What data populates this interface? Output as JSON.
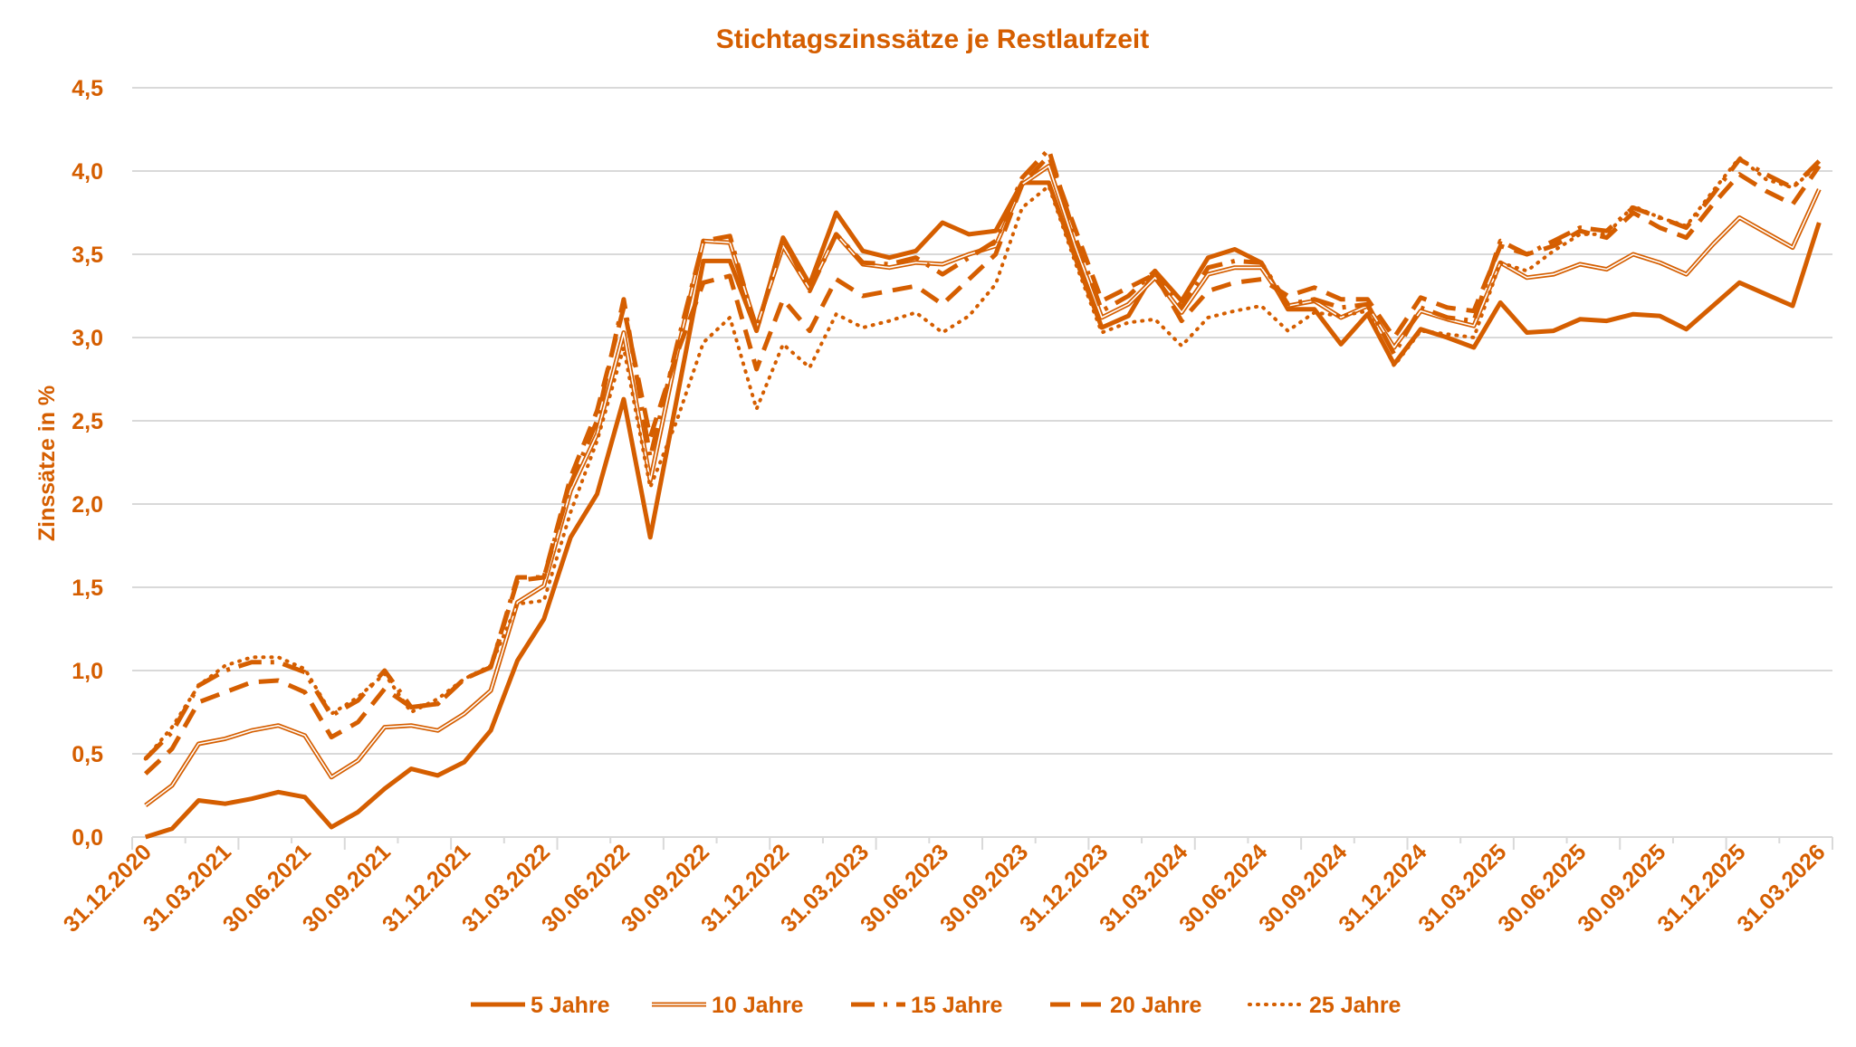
{
  "colors": {
    "series": "#D55E00",
    "grid": "#D9D9D9",
    "background": "#FFFFFF"
  },
  "chart_data": {
    "type": "line",
    "title": "Stichtagszinssätze je Restlaufzeit",
    "xlabel": "",
    "ylabel": "Zinssätze in %",
    "ylim": [
      0,
      4.5
    ],
    "yticks": [
      "0,0",
      "0,5",
      "1,0",
      "1,5",
      "2,0",
      "2,5",
      "3,0",
      "3,5",
      "4,0",
      "4,5"
    ],
    "grid": "horizontal",
    "legend_position": "bottom",
    "x_tick_labels": [
      "31.12.2020",
      "31.03.2021",
      "30.06.2021",
      "30.09.2021",
      "31.12.2021",
      "31.03.2022",
      "30.06.2022",
      "30.09.2022",
      "31.12.2022",
      "31.03.2023",
      "30.06.2023",
      "30.09.2023",
      "31.12.2023",
      "31.03.2024",
      "30.06.2024",
      "30.09.2024",
      "31.12.2024",
      "31.03.2025",
      "30.06.2025",
      "30.09.2025",
      "31.12.2025",
      "31.03.2026"
    ],
    "x_points": "monthly, 31.12.2020 to 31.03.2026",
    "series": [
      {
        "name": "5 Jahre",
        "style": "solid",
        "values": [
          0.0,
          0.05,
          0.22,
          0.2,
          0.23,
          0.27,
          0.24,
          0.06,
          0.15,
          0.29,
          0.41,
          0.37,
          0.45,
          0.64,
          1.06,
          1.31,
          1.8,
          2.06,
          2.63,
          1.8,
          2.63,
          3.46,
          3.46,
          3.04,
          3.6,
          3.32,
          3.75,
          3.52,
          3.48,
          3.52,
          3.69,
          3.62,
          3.64,
          3.93,
          3.93,
          3.48,
          3.06,
          3.13,
          3.4,
          3.22,
          3.48,
          3.53,
          3.45,
          3.17,
          3.17,
          2.96,
          3.14,
          2.84,
          3.05,
          3.0,
          2.94,
          3.21,
          3.03,
          3.04,
          3.11,
          3.1,
          3.14,
          3.13,
          3.05,
          3.19,
          3.33,
          3.26,
          3.19,
          3.69
        ]
      },
      {
        "name": "10 Jahre",
        "style": "double",
        "values": [
          0.19,
          0.31,
          0.56,
          0.59,
          0.64,
          0.67,
          0.61,
          0.36,
          0.46,
          0.66,
          0.67,
          0.64,
          0.74,
          0.88,
          1.41,
          1.51,
          2.08,
          2.42,
          3.03,
          2.14,
          2.9,
          3.58,
          3.57,
          3.06,
          3.55,
          3.29,
          3.62,
          3.44,
          3.42,
          3.45,
          3.44,
          3.5,
          3.55,
          3.92,
          4.03,
          3.55,
          3.12,
          3.2,
          3.36,
          3.15,
          3.38,
          3.42,
          3.42,
          3.19,
          3.22,
          3.12,
          3.19,
          2.94,
          3.16,
          3.11,
          3.07,
          3.45,
          3.36,
          3.38,
          3.44,
          3.41,
          3.5,
          3.45,
          3.38,
          3.56,
          3.72,
          3.63,
          3.54,
          3.89
        ]
      },
      {
        "name": "15 Jahre",
        "style": "dash-dot",
        "values": [
          0.47,
          0.63,
          0.91,
          1.0,
          1.05,
          1.05,
          0.99,
          0.73,
          0.82,
          1.0,
          0.78,
          0.8,
          0.95,
          1.02,
          1.56,
          1.56,
          2.12,
          2.5,
          3.23,
          2.28,
          2.95,
          3.58,
          3.61,
          3.04,
          3.6,
          3.28,
          3.62,
          3.45,
          3.44,
          3.48,
          3.38,
          3.48,
          3.58,
          3.96,
          4.13,
          3.6,
          3.16,
          3.25,
          3.4,
          3.18,
          3.42,
          3.46,
          3.45,
          3.2,
          3.23,
          3.18,
          3.2,
          2.9,
          3.18,
          3.12,
          3.1,
          3.58,
          3.5,
          3.58,
          3.66,
          3.64,
          3.78,
          3.72,
          3.66,
          3.86,
          4.07,
          3.98,
          3.9,
          4.06
        ]
      },
      {
        "name": "20 Jahre",
        "style": "dashed",
        "values": [
          0.38,
          0.53,
          0.81,
          0.87,
          0.93,
          0.94,
          0.87,
          0.6,
          0.69,
          0.89,
          0.78,
          0.8,
          0.95,
          1.02,
          1.54,
          1.56,
          2.16,
          2.56,
          3.18,
          2.4,
          2.9,
          3.33,
          3.37,
          2.81,
          3.23,
          3.04,
          3.35,
          3.25,
          3.28,
          3.31,
          3.2,
          3.35,
          3.5,
          3.92,
          4.09,
          3.65,
          3.22,
          3.3,
          3.38,
          3.1,
          3.28,
          3.33,
          3.35,
          3.25,
          3.3,
          3.23,
          3.23,
          3.0,
          3.24,
          3.18,
          3.16,
          3.55,
          3.5,
          3.55,
          3.64,
          3.6,
          3.75,
          3.66,
          3.6,
          3.8,
          3.98,
          3.88,
          3.8,
          4.03
        ]
      },
      {
        "name": "25 Jahre",
        "style": "dotted",
        "values": [
          0.47,
          0.66,
          0.91,
          1.03,
          1.08,
          1.08,
          1.01,
          0.74,
          0.84,
          0.98,
          0.75,
          0.83,
          0.95,
          1.03,
          1.4,
          1.42,
          1.95,
          2.38,
          2.94,
          2.1,
          2.5,
          2.97,
          3.12,
          2.57,
          2.96,
          2.82,
          3.14,
          3.06,
          3.1,
          3.15,
          3.03,
          3.13,
          3.32,
          3.78,
          3.91,
          3.45,
          3.03,
          3.09,
          3.11,
          2.95,
          3.12,
          3.16,
          3.19,
          3.04,
          3.15,
          3.13,
          3.16,
          2.83,
          3.04,
          3.02,
          3.0,
          3.45,
          3.4,
          3.52,
          3.62,
          3.62,
          3.79,
          3.72,
          3.67,
          3.88,
          4.08,
          3.95,
          3.9,
          4.04
        ]
      }
    ]
  }
}
